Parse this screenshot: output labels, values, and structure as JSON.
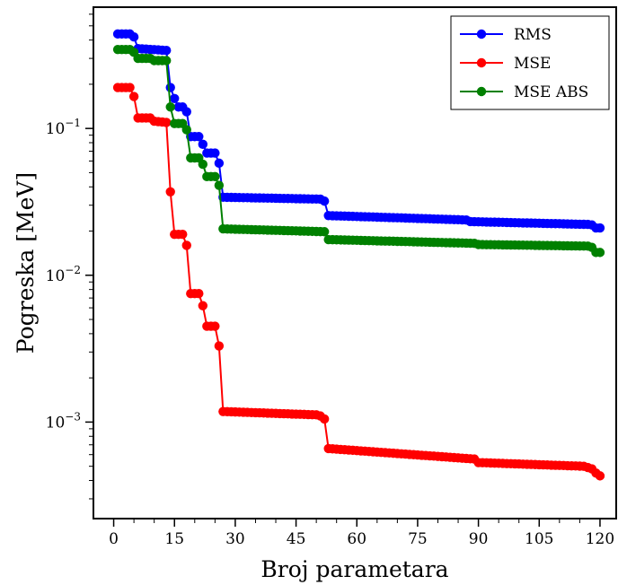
{
  "chart_data": {
    "type": "line",
    "xlabel": "Broj parametara",
    "ylabel": "Pogreska [MeV]",
    "yscale": "log",
    "xlim": [
      -5,
      124
    ],
    "ylim": [
      0.00022,
      0.67
    ],
    "xticks": [
      0,
      15,
      30,
      45,
      60,
      75,
      90,
      105,
      120
    ],
    "xtick_labels": [
      "0",
      "15",
      "30",
      "45",
      "60",
      "75",
      "90",
      "105",
      "120"
    ],
    "yticks": [
      {
        "value": 0.1,
        "base": "10",
        "exp": "−1"
      },
      {
        "value": 0.01,
        "base": "10",
        "exp": "−2"
      },
      {
        "value": 0.001,
        "base": "10",
        "exp": "−3"
      }
    ],
    "grid": false,
    "legend_position": "top-right",
    "series": [
      {
        "name": "RMS",
        "color": "#0000ff",
        "segments": [
          {
            "x_start": 1,
            "x_end": 4,
            "y_start": 0.44,
            "y_end": 0.44
          },
          {
            "x_start": 5,
            "x_end": 5,
            "y_start": 0.42,
            "y_end": 0.42
          },
          {
            "x_start": 6,
            "x_end": 13,
            "y_start": 0.35,
            "y_end": 0.34
          },
          {
            "x_start": 14,
            "x_end": 14,
            "y_start": 0.19,
            "y_end": 0.19
          },
          {
            "x_start": 15,
            "x_end": 15,
            "y_start": 0.16,
            "y_end": 0.16
          },
          {
            "x_start": 16,
            "x_end": 17,
            "y_start": 0.14,
            "y_end": 0.14
          },
          {
            "x_start": 18,
            "x_end": 18,
            "y_start": 0.13,
            "y_end": 0.13
          },
          {
            "x_start": 19,
            "x_end": 21,
            "y_start": 0.088,
            "y_end": 0.088
          },
          {
            "x_start": 22,
            "x_end": 22,
            "y_start": 0.078,
            "y_end": 0.078
          },
          {
            "x_start": 23,
            "x_end": 25,
            "y_start": 0.068,
            "y_end": 0.068
          },
          {
            "x_start": 26,
            "x_end": 26,
            "y_start": 0.058,
            "y_end": 0.058
          },
          {
            "x_start": 27,
            "x_end": 51,
            "y_start": 0.034,
            "y_end": 0.033
          },
          {
            "x_start": 52,
            "x_end": 52,
            "y_start": 0.032,
            "y_end": 0.032
          },
          {
            "x_start": 53,
            "x_end": 87,
            "y_start": 0.0255,
            "y_end": 0.0238
          },
          {
            "x_start": 88,
            "x_end": 117,
            "y_start": 0.0232,
            "y_end": 0.0222
          },
          {
            "x_start": 118,
            "x_end": 118,
            "y_start": 0.022,
            "y_end": 0.022
          },
          {
            "x_start": 119,
            "x_end": 120,
            "y_start": 0.021,
            "y_end": 0.021
          }
        ]
      },
      {
        "name": "MSE",
        "color": "#ff0000",
        "segments": [
          {
            "x_start": 1,
            "x_end": 4,
            "y_start": 0.19,
            "y_end": 0.19
          },
          {
            "x_start": 5,
            "x_end": 5,
            "y_start": 0.165,
            "y_end": 0.165
          },
          {
            "x_start": 6,
            "x_end": 9,
            "y_start": 0.118,
            "y_end": 0.118
          },
          {
            "x_start": 10,
            "x_end": 13,
            "y_start": 0.112,
            "y_end": 0.11
          },
          {
            "x_start": 14,
            "x_end": 14,
            "y_start": 0.037,
            "y_end": 0.037
          },
          {
            "x_start": 15,
            "x_end": 17,
            "y_start": 0.019,
            "y_end": 0.019
          },
          {
            "x_start": 18,
            "x_end": 18,
            "y_start": 0.016,
            "y_end": 0.016
          },
          {
            "x_start": 19,
            "x_end": 21,
            "y_start": 0.0075,
            "y_end": 0.0075
          },
          {
            "x_start": 22,
            "x_end": 22,
            "y_start": 0.0062,
            "y_end": 0.0062
          },
          {
            "x_start": 23,
            "x_end": 25,
            "y_start": 0.0045,
            "y_end": 0.0045
          },
          {
            "x_start": 26,
            "x_end": 26,
            "y_start": 0.0033,
            "y_end": 0.0033
          },
          {
            "x_start": 27,
            "x_end": 50,
            "y_start": 0.00118,
            "y_end": 0.00112
          },
          {
            "x_start": 51,
            "x_end": 51,
            "y_start": 0.0011,
            "y_end": 0.0011
          },
          {
            "x_start": 52,
            "x_end": 52,
            "y_start": 0.00105,
            "y_end": 0.00105
          },
          {
            "x_start": 53,
            "x_end": 89,
            "y_start": 0.00066,
            "y_end": 0.00056
          },
          {
            "x_start": 90,
            "x_end": 116,
            "y_start": 0.00053,
            "y_end": 0.0005
          },
          {
            "x_start": 117,
            "x_end": 118,
            "y_start": 0.00049,
            "y_end": 0.00048
          },
          {
            "x_start": 119,
            "x_end": 119,
            "y_start": 0.00045,
            "y_end": 0.00045
          },
          {
            "x_start": 120,
            "x_end": 120,
            "y_start": 0.00043,
            "y_end": 0.00043
          }
        ]
      },
      {
        "name": "MSE ABS",
        "color": "#008000",
        "segments": [
          {
            "x_start": 1,
            "x_end": 4,
            "y_start": 0.345,
            "y_end": 0.345
          },
          {
            "x_start": 5,
            "x_end": 5,
            "y_start": 0.33,
            "y_end": 0.33
          },
          {
            "x_start": 6,
            "x_end": 9,
            "y_start": 0.3,
            "y_end": 0.3
          },
          {
            "x_start": 10,
            "x_end": 13,
            "y_start": 0.29,
            "y_end": 0.29
          },
          {
            "x_start": 14,
            "x_end": 14,
            "y_start": 0.14,
            "y_end": 0.14
          },
          {
            "x_start": 15,
            "x_end": 17,
            "y_start": 0.108,
            "y_end": 0.108
          },
          {
            "x_start": 18,
            "x_end": 18,
            "y_start": 0.098,
            "y_end": 0.098
          },
          {
            "x_start": 19,
            "x_end": 21,
            "y_start": 0.063,
            "y_end": 0.063
          },
          {
            "x_start": 22,
            "x_end": 22,
            "y_start": 0.057,
            "y_end": 0.057
          },
          {
            "x_start": 23,
            "x_end": 25,
            "y_start": 0.047,
            "y_end": 0.047
          },
          {
            "x_start": 26,
            "x_end": 26,
            "y_start": 0.041,
            "y_end": 0.041
          },
          {
            "x_start": 27,
            "x_end": 52,
            "y_start": 0.0207,
            "y_end": 0.0198
          },
          {
            "x_start": 53,
            "x_end": 89,
            "y_start": 0.0175,
            "y_end": 0.0165
          },
          {
            "x_start": 90,
            "x_end": 117,
            "y_start": 0.0162,
            "y_end": 0.0158
          },
          {
            "x_start": 118,
            "x_end": 118,
            "y_start": 0.0155,
            "y_end": 0.0155
          },
          {
            "x_start": 119,
            "x_end": 120,
            "y_start": 0.0143,
            "y_end": 0.0143
          }
        ]
      }
    ]
  }
}
